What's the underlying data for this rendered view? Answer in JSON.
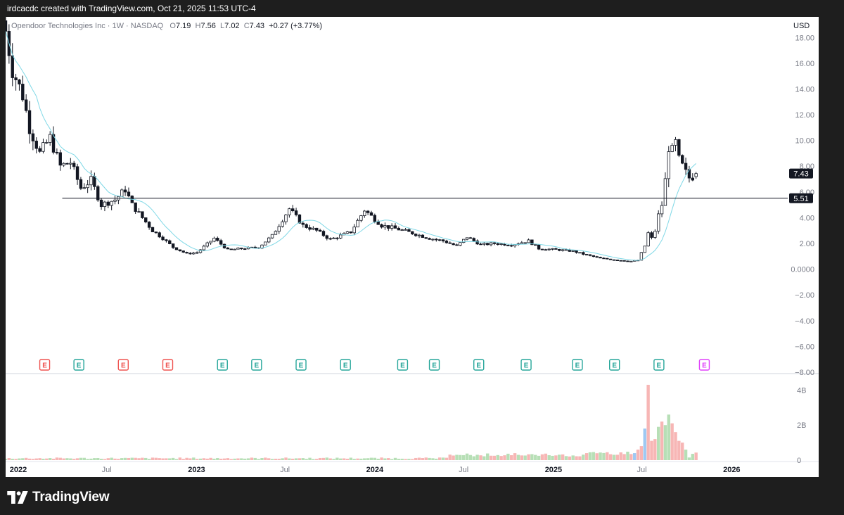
{
  "header": {
    "caption": "irdcacdc created with TradingView.com, Oct 21, 2025 11:53 UTC-4"
  },
  "legend": {
    "symbol": "Opendoor Technologies Inc · 1W · NASDAQ",
    "o_label": "O",
    "o_value": "7.19",
    "h_label": "H",
    "h_value": "7.56",
    "l_label": "L",
    "l_value": "7.02",
    "c_label": "C",
    "c_value": "7.43",
    "change": "+0.27 (+3.77%)"
  },
  "currency": "USD",
  "footer": {
    "brand": "TradingView"
  },
  "colors": {
    "up": "#26a69a",
    "down": "#ef5350",
    "candle": "#131722",
    "ma": "#7fd8e6",
    "vol_up": "#b7dfb6",
    "vol_down": "#f7b6b5",
    "vol_blue": "#9ec9f3",
    "earn_future": "#e040fb",
    "price_tag_bg": "#131722"
  },
  "chart_data": {
    "type": "candlestick",
    "ylim": [
      -8,
      19.6
    ],
    "y_ticks": [
      "18.00",
      "16.00",
      "14.00",
      "12.00",
      "10.00",
      "8.00",
      "6.00",
      "4.00",
      "2.00",
      "0.0000",
      "−2.00",
      "−4.00",
      "−6.00",
      "−8.00"
    ],
    "y_tick_values": [
      18,
      16,
      14,
      12,
      10,
      8,
      6,
      4,
      2,
      0,
      -2,
      -4,
      -6,
      -8
    ],
    "x_start": "2021-12-06",
    "x_end": "2026-04-20",
    "x_ticks": [
      {
        "label": "2022",
        "date": "2022-01-01"
      },
      {
        "label": "Jul",
        "date": "2022-07-01"
      },
      {
        "label": "2023",
        "date": "2023-01-01"
      },
      {
        "label": "Jul",
        "date": "2023-07-01"
      },
      {
        "label": "2024",
        "date": "2024-01-01"
      },
      {
        "label": "Jul",
        "date": "2024-07-01"
      },
      {
        "label": "2025",
        "date": "2025-01-01"
      },
      {
        "label": "Jul",
        "date": "2025-07-01"
      },
      {
        "label": "2026",
        "date": "2026-01-01"
      }
    ],
    "horizontal_line": {
      "value": 5.51,
      "label": "5.51",
      "start_date": "2022-04-01"
    },
    "last_price": {
      "value": 7.43,
      "label": "7.43"
    },
    "price_curve": [
      [
        "2021-12-06",
        18.5
      ],
      [
        "2021-12-20",
        15.5
      ],
      [
        "2022-01-10",
        13.5
      ],
      [
        "2022-01-24",
        11.0
      ],
      [
        "2022-02-14",
        9.0
      ],
      [
        "2022-03-07",
        10.2
      ],
      [
        "2022-03-28",
        8.0
      ],
      [
        "2022-04-18",
        8.3
      ],
      [
        "2022-05-09",
        6.3
      ],
      [
        "2022-05-30",
        6.9
      ],
      [
        "2022-06-20",
        5.0
      ],
      [
        "2022-07-18",
        5.4
      ],
      [
        "2022-08-08",
        6.2
      ],
      [
        "2022-08-22",
        5.0
      ],
      [
        "2022-09-12",
        4.0
      ],
      [
        "2022-10-03",
        3.0
      ],
      [
        "2022-10-24",
        2.4
      ],
      [
        "2022-11-14",
        1.7
      ],
      [
        "2022-12-12",
        1.2
      ],
      [
        "2023-01-02",
        1.3
      ],
      [
        "2023-02-06",
        2.4
      ],
      [
        "2023-03-06",
        1.5
      ],
      [
        "2023-04-03",
        1.6
      ],
      [
        "2023-05-08",
        1.7
      ],
      [
        "2023-06-05",
        2.6
      ],
      [
        "2023-07-10",
        4.7
      ],
      [
        "2023-08-07",
        3.4
      ],
      [
        "2023-09-04",
        3.0
      ],
      [
        "2023-10-02",
        2.3
      ],
      [
        "2023-11-13",
        2.9
      ],
      [
        "2023-12-11",
        4.6
      ],
      [
        "2024-01-15",
        3.4
      ],
      [
        "2024-02-19",
        3.1
      ],
      [
        "2024-03-18",
        2.8
      ],
      [
        "2024-04-22",
        2.4
      ],
      [
        "2024-05-20",
        2.2
      ],
      [
        "2024-06-17",
        1.8
      ],
      [
        "2024-07-08",
        2.5
      ],
      [
        "2024-08-05",
        1.9
      ],
      [
        "2024-09-02",
        2.0
      ],
      [
        "2024-10-07",
        1.9
      ],
      [
        "2024-11-11",
        2.2
      ],
      [
        "2024-12-02",
        1.6
      ],
      [
        "2025-01-13",
        1.5
      ],
      [
        "2025-02-10",
        1.4
      ],
      [
        "2025-03-10",
        1.1
      ],
      [
        "2025-04-07",
        0.85
      ],
      [
        "2025-05-12",
        0.7
      ],
      [
        "2025-06-09",
        0.62
      ],
      [
        "2025-06-23",
        0.7
      ],
      [
        "2025-07-07",
        1.8
      ],
      [
        "2025-07-14",
        2.8
      ],
      [
        "2025-07-21",
        2.4
      ],
      [
        "2025-07-28",
        3.0
      ],
      [
        "2025-08-04",
        4.2
      ],
      [
        "2025-08-11",
        5.0
      ],
      [
        "2025-08-18",
        6.9
      ],
      [
        "2025-08-25",
        9.5
      ],
      [
        "2025-09-01",
        9.2
      ],
      [
        "2025-09-08",
        9.8
      ],
      [
        "2025-09-15",
        8.5
      ],
      [
        "2025-09-22",
        8.0
      ],
      [
        "2025-09-29",
        7.5
      ],
      [
        "2025-10-06",
        7.1
      ],
      [
        "2025-10-13",
        7.2
      ],
      [
        "2025-10-20",
        7.43
      ]
    ],
    "last_candle": {
      "date": "2025-10-20",
      "open": 7.19,
      "high": 7.56,
      "low": 7.02,
      "close": 7.43
    },
    "volume": {
      "ylim": [
        0,
        4.9
      ],
      "y_ticks": [
        "4B",
        "2B",
        "0"
      ],
      "y_tick_values": [
        4,
        2,
        0
      ],
      "spikes": [
        [
          "2025-06-16",
          0.4,
          "blue"
        ],
        [
          "2025-06-23",
          0.6,
          "down"
        ],
        [
          "2025-06-30",
          0.8,
          "down"
        ],
        [
          "2025-07-07",
          1.8,
          "blue"
        ],
        [
          "2025-07-14",
          4.3,
          "down"
        ],
        [
          "2025-07-21",
          1.1,
          "down"
        ],
        [
          "2025-07-28",
          1.2,
          "down"
        ],
        [
          "2025-08-04",
          1.9,
          "up"
        ],
        [
          "2025-08-11",
          2.2,
          "down"
        ],
        [
          "2025-08-18",
          2.0,
          "up"
        ],
        [
          "2025-08-25",
          2.6,
          "up"
        ],
        [
          "2025-09-01",
          2.1,
          "down"
        ],
        [
          "2025-09-08",
          1.6,
          "down"
        ],
        [
          "2025-09-15",
          1.1,
          "down"
        ],
        [
          "2025-09-22",
          1.0,
          "down"
        ],
        [
          "2025-09-29",
          0.6,
          "up"
        ],
        [
          "2025-10-06",
          0.15,
          "up"
        ]
      ]
    },
    "earnings": [
      {
        "date": "2022-02-24",
        "label": "E",
        "kind": "miss"
      },
      {
        "date": "2022-05-05",
        "label": "E",
        "kind": "beat"
      },
      {
        "date": "2022-08-04",
        "label": "E",
        "kind": "miss"
      },
      {
        "date": "2022-11-03",
        "label": "E",
        "kind": "miss"
      },
      {
        "date": "2023-02-23",
        "label": "E",
        "kind": "beat"
      },
      {
        "date": "2023-05-04",
        "label": "E",
        "kind": "beat"
      },
      {
        "date": "2023-08-03",
        "label": "E",
        "kind": "beat"
      },
      {
        "date": "2023-11-02",
        "label": "E",
        "kind": "beat"
      },
      {
        "date": "2024-02-27",
        "label": "E",
        "kind": "beat"
      },
      {
        "date": "2024-05-02",
        "label": "E",
        "kind": "beat"
      },
      {
        "date": "2024-08-01",
        "label": "E",
        "kind": "beat"
      },
      {
        "date": "2024-11-06",
        "label": "E",
        "kind": "beat"
      },
      {
        "date": "2025-02-19",
        "label": "E",
        "kind": "beat"
      },
      {
        "date": "2025-05-06",
        "label": "E",
        "kind": "beat"
      },
      {
        "date": "2025-08-05",
        "label": "E",
        "kind": "beat"
      },
      {
        "date": "2025-11-06",
        "label": "E",
        "kind": "future"
      }
    ]
  }
}
